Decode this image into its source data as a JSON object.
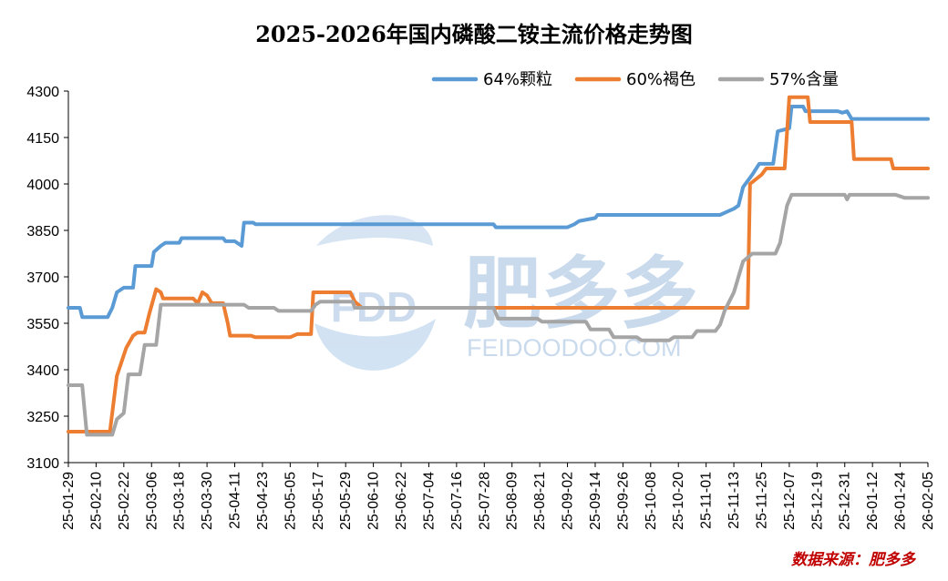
{
  "chart_data": {
    "type": "line",
    "title": "2025-2026年国内磷酸二铵主流价格走势图",
    "xlabel": "",
    "ylabel": "",
    "ylim": [
      3100,
      4300
    ],
    "yticks": [
      3100,
      3250,
      3400,
      3550,
      3700,
      3850,
      4000,
      4150,
      4300
    ],
    "xlim": [
      "2025-01-29",
      "2026-02-05"
    ],
    "xticks": [
      "25-01-29",
      "25-02-10",
      "25-02-22",
      "25-03-06",
      "25-03-18",
      "25-03-30",
      "25-04-11",
      "25-04-23",
      "25-05-05",
      "25-05-17",
      "25-05-29",
      "25-06-10",
      "25-06-22",
      "25-07-04",
      "25-07-16",
      "25-07-28",
      "25-08-09",
      "25-08-21",
      "25-09-02",
      "25-09-14",
      "25-09-26",
      "25-10-08",
      "25-10-20",
      "25-11-01",
      "25-11-13",
      "25-11-25",
      "25-12-07",
      "25-12-19",
      "25-12-31",
      "26-01-12",
      "26-01-24",
      "26-02-05"
    ],
    "grid": false,
    "legend_position": "top",
    "series": [
      {
        "name": "64%颗粒",
        "color": "#5b9bd5",
        "points": [
          [
            "2025-01-29",
            3600
          ],
          [
            "2025-02-03",
            3600
          ],
          [
            "2025-02-04",
            3570
          ],
          [
            "2025-02-15",
            3570
          ],
          [
            "2025-02-17",
            3600
          ],
          [
            "2025-02-19",
            3650
          ],
          [
            "2025-02-22",
            3665
          ],
          [
            "2025-02-26",
            3665
          ],
          [
            "2025-02-27",
            3735
          ],
          [
            "2025-03-06",
            3735
          ],
          [
            "2025-03-07",
            3780
          ],
          [
            "2025-03-10",
            3800
          ],
          [
            "2025-03-12",
            3810
          ],
          [
            "2025-03-18",
            3810
          ],
          [
            "2025-03-19",
            3825
          ],
          [
            "2025-04-06",
            3825
          ],
          [
            "2025-04-07",
            3815
          ],
          [
            "2025-04-11",
            3815
          ],
          [
            "2025-04-14",
            3800
          ],
          [
            "2025-04-15",
            3875
          ],
          [
            "2025-04-19",
            3875
          ],
          [
            "2025-04-20",
            3870
          ],
          [
            "2025-08-01",
            3870
          ],
          [
            "2025-08-02",
            3860
          ],
          [
            "2025-09-02",
            3860
          ],
          [
            "2025-09-05",
            3870
          ],
          [
            "2025-09-07",
            3880
          ],
          [
            "2025-09-14",
            3890
          ],
          [
            "2025-09-15",
            3900
          ],
          [
            "2025-11-07",
            3900
          ],
          [
            "2025-11-10",
            3910
          ],
          [
            "2025-11-13",
            3920
          ],
          [
            "2025-11-15",
            3930
          ],
          [
            "2025-11-17",
            3990
          ],
          [
            "2025-11-21",
            4030
          ],
          [
            "2025-11-24",
            4065
          ],
          [
            "2025-11-30",
            4065
          ],
          [
            "2025-12-02",
            4170
          ],
          [
            "2025-12-07",
            4180
          ],
          [
            "2025-12-08",
            4250
          ],
          [
            "2025-12-13",
            4250
          ],
          [
            "2025-12-14",
            4235
          ],
          [
            "2025-12-28",
            4235
          ],
          [
            "2025-12-30",
            4230
          ],
          [
            "2026-01-01",
            4235
          ],
          [
            "2026-01-03",
            4210
          ],
          [
            "2026-02-05",
            4210
          ]
        ]
      },
      {
        "name": "60%褐色",
        "color": "#ed7d31",
        "points": [
          [
            "2025-01-29",
            3200
          ],
          [
            "2025-02-16",
            3200
          ],
          [
            "2025-02-19",
            3380
          ],
          [
            "2025-02-23",
            3470
          ],
          [
            "2025-02-26",
            3510
          ],
          [
            "2025-02-28",
            3520
          ],
          [
            "2025-03-03",
            3520
          ],
          [
            "2025-03-05",
            3580
          ],
          [
            "2025-03-08",
            3660
          ],
          [
            "2025-03-10",
            3650
          ],
          [
            "2025-03-11",
            3630
          ],
          [
            "2025-03-24",
            3630
          ],
          [
            "2025-03-26",
            3615
          ],
          [
            "2025-03-28",
            3650
          ],
          [
            "2025-03-30",
            3640
          ],
          [
            "2025-04-01",
            3615
          ],
          [
            "2025-04-06",
            3615
          ],
          [
            "2025-04-08",
            3550
          ],
          [
            "2025-04-09",
            3510
          ],
          [
            "2025-04-18",
            3510
          ],
          [
            "2025-04-20",
            3505
          ],
          [
            "2025-05-05",
            3505
          ],
          [
            "2025-05-08",
            3515
          ],
          [
            "2025-05-14",
            3515
          ],
          [
            "2025-05-15",
            3650
          ],
          [
            "2025-05-31",
            3650
          ],
          [
            "2025-06-02",
            3620
          ],
          [
            "2025-06-05",
            3600
          ],
          [
            "2025-11-19",
            3600
          ],
          [
            "2025-11-20",
            4000
          ],
          [
            "2025-11-25",
            4030
          ],
          [
            "2025-11-27",
            4050
          ],
          [
            "2025-12-05",
            4050
          ],
          [
            "2025-12-07",
            4280
          ],
          [
            "2025-12-15",
            4280
          ],
          [
            "2025-12-16",
            4200
          ],
          [
            "2026-01-03",
            4200
          ],
          [
            "2026-01-04",
            4080
          ],
          [
            "2026-01-20",
            4080
          ],
          [
            "2026-01-21",
            4050
          ],
          [
            "2026-02-05",
            4050
          ]
        ]
      },
      {
        "name": "57%含量",
        "color": "#a5a5a5",
        "points": [
          [
            "2025-01-29",
            3350
          ],
          [
            "2025-02-04",
            3350
          ],
          [
            "2025-02-06",
            3190
          ],
          [
            "2025-02-17",
            3190
          ],
          [
            "2025-02-19",
            3240
          ],
          [
            "2025-02-22",
            3260
          ],
          [
            "2025-02-24",
            3385
          ],
          [
            "2025-03-01",
            3385
          ],
          [
            "2025-03-03",
            3480
          ],
          [
            "2025-03-08",
            3480
          ],
          [
            "2025-03-10",
            3610
          ],
          [
            "2025-04-15",
            3610
          ],
          [
            "2025-04-17",
            3600
          ],
          [
            "2025-04-28",
            3600
          ],
          [
            "2025-04-30",
            3590
          ],
          [
            "2025-05-14",
            3590
          ],
          [
            "2025-05-16",
            3610
          ],
          [
            "2025-05-18",
            3620
          ],
          [
            "2025-06-01",
            3620
          ],
          [
            "2025-06-02",
            3600
          ],
          [
            "2025-08-01",
            3600
          ],
          [
            "2025-08-03",
            3565
          ],
          [
            "2025-08-20",
            3565
          ],
          [
            "2025-08-22",
            3555
          ],
          [
            "2025-09-10",
            3555
          ],
          [
            "2025-09-12",
            3530
          ],
          [
            "2025-09-20",
            3530
          ],
          [
            "2025-09-22",
            3505
          ],
          [
            "2025-10-02",
            3505
          ],
          [
            "2025-10-04",
            3495
          ],
          [
            "2025-10-16",
            3495
          ],
          [
            "2025-10-18",
            3505
          ],
          [
            "2025-10-26",
            3505
          ],
          [
            "2025-10-28",
            3525
          ],
          [
            "2025-11-05",
            3525
          ],
          [
            "2025-11-07",
            3545
          ],
          [
            "2025-11-09",
            3590
          ],
          [
            "2025-11-11",
            3620
          ],
          [
            "2025-11-13",
            3650
          ],
          [
            "2025-11-17",
            3750
          ],
          [
            "2025-11-21",
            3775
          ],
          [
            "2025-12-01",
            3775
          ],
          [
            "2025-12-03",
            3810
          ],
          [
            "2025-12-06",
            3930
          ],
          [
            "2025-12-08",
            3965
          ],
          [
            "2025-12-31",
            3965
          ],
          [
            "2026-01-01",
            3950
          ],
          [
            "2026-01-02",
            3965
          ],
          [
            "2026-01-22",
            3965
          ],
          [
            "2026-01-26",
            3955
          ],
          [
            "2026-02-05",
            3955
          ]
        ]
      }
    ]
  },
  "watermark": {
    "logo_letters": "FDD",
    "brand_cn": "肥多多",
    "domain": "FEIDOODOO.COM"
  },
  "source_note": "数据来源：肥多多"
}
